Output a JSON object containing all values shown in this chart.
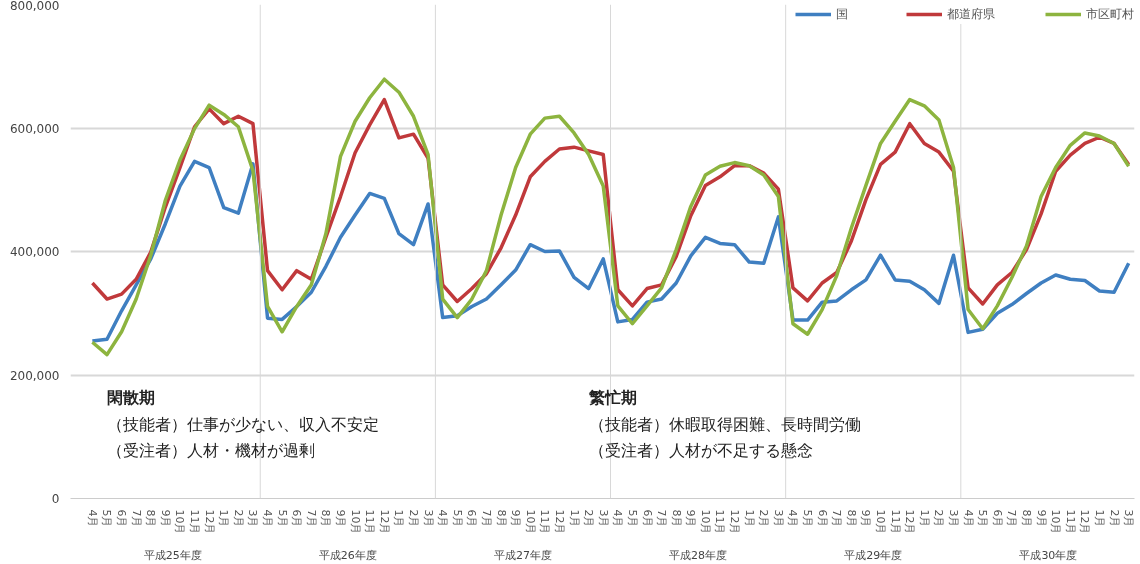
{
  "chart_data": {
    "type": "line",
    "categories": [
      "4月",
      "5月",
      "6月",
      "7月",
      "8月",
      "9月",
      "10月",
      "11月",
      "12月",
      "1月",
      "2月",
      "3月",
      "4月",
      "5月",
      "6月",
      "7月",
      "8月",
      "9月",
      "10月",
      "11月",
      "12月",
      "1月",
      "2月",
      "3月",
      "4月",
      "5月",
      "6月",
      "7月",
      "8月",
      "9月",
      "10月",
      "11月",
      "12月",
      "1月",
      "2月",
      "3月",
      "4月",
      "5月",
      "6月",
      "7月",
      "8月",
      "9月",
      "10月",
      "11月",
      "12月",
      "1月",
      "2月",
      "3月",
      "4月",
      "5月",
      "6月",
      "7月",
      "8月",
      "9月",
      "10月",
      "11月",
      "12月",
      "1月",
      "2月",
      "3月",
      "4月",
      "5月",
      "6月",
      "7月",
      "8月",
      "9月",
      "10月",
      "11月",
      "12月",
      "1月",
      "2月",
      "3月"
    ],
    "series": [
      {
        "name": "国",
        "color": "#3f7fc1",
        "values": [
          255000,
          258000,
          304000,
          346000,
          388000,
          445000,
          506000,
          546000,
          536000,
          471000,
          462000,
          542000,
          292000,
          290000,
          311000,
          334000,
          376000,
          423000,
          459000,
          494000,
          486000,
          429000,
          411000,
          477000,
          293000,
          296000,
          311000,
          323000,
          346000,
          370000,
          411000,
          400000,
          401000,
          358000,
          340000,
          388000,
          286000,
          290000,
          318000,
          323000,
          349000,
          393000,
          423000,
          413000,
          411000,
          383000,
          381000,
          456000,
          289000,
          289000,
          318000,
          320000,
          338000,
          354000,
          394000,
          354000,
          352000,
          338000,
          316000,
          394000,
          269000,
          274000,
          300000,
          314000,
          332000,
          349000,
          362000,
          355000,
          353000,
          336000,
          334000,
          381000
        ]
      },
      {
        "name": "都道府県",
        "color": "#c0393b",
        "values": [
          349000,
          323000,
          331000,
          355000,
          399000,
          472000,
          536000,
          602000,
          631000,
          607000,
          619000,
          607000,
          369000,
          338000,
          369000,
          355000,
          423000,
          489000,
          560000,
          605000,
          646000,
          584000,
          590000,
          551000,
          346000,
          319000,
          340000,
          364000,
          406000,
          459000,
          521000,
          546000,
          566000,
          569000,
          563000,
          557000,
          338000,
          312000,
          340000,
          346000,
          392000,
          458000,
          507000,
          521000,
          539000,
          539000,
          527000,
          501000,
          341000,
          320000,
          349000,
          366000,
          417000,
          484000,
          541000,
          561000,
          607000,
          575000,
          561000,
          530000,
          341000,
          315000,
          346000,
          366000,
          403000,
          461000,
          530000,
          556000,
          575000,
          585000,
          575000,
          541000
        ]
      },
      {
        "name": "市区町村",
        "color": "#8db43f",
        "values": [
          253000,
          233000,
          270000,
          323000,
          394000,
          483000,
          548000,
          599000,
          637000,
          622000,
          602000,
          531000,
          311000,
          270000,
          311000,
          346000,
          429000,
          554000,
          611000,
          649000,
          679000,
          658000,
          619000,
          557000,
          323000,
          293000,
          323000,
          369000,
          459000,
          536000,
          590000,
          616000,
          619000,
          592000,
          557000,
          506000,
          312000,
          283000,
          312000,
          341000,
          403000,
          473000,
          524000,
          538000,
          544000,
          539000,
          524000,
          489000,
          283000,
          266000,
          306000,
          361000,
          438000,
          507000,
          575000,
          611000,
          646000,
          636000,
          613000,
          536000,
          306000,
          275000,
          312000,
          358000,
          409000,
          489000,
          536000,
          572000,
          592000,
          587000,
          575000,
          538000
        ]
      }
    ],
    "ylim": [
      0,
      800000
    ],
    "yticks": [
      0,
      {
        "value": 200000,
        "label": "200,000"
      },
      {
        "value": 400000,
        "label": "400,000"
      },
      {
        "value": 600000,
        "label": "600,000"
      },
      {
        "value": 800000,
        "label": "800,000"
      }
    ],
    "annotations": [
      "平成25年度",
      "平成26年度",
      "平成27年度",
      "平成28年度",
      "平成29年度",
      "平成30年度",
      "閑散期",
      "（技能者）仕事が少ない、収入不安定",
      "（受注者）人材・機材が過剰",
      "繁忙期",
      "（技能者）休暇取得困難、長時間労働",
      "（受注者）人材が不足する懸念"
    ],
    "grid": "y",
    "legend": "top right",
    "marker": "none",
    "line_style": "solid"
  }
}
